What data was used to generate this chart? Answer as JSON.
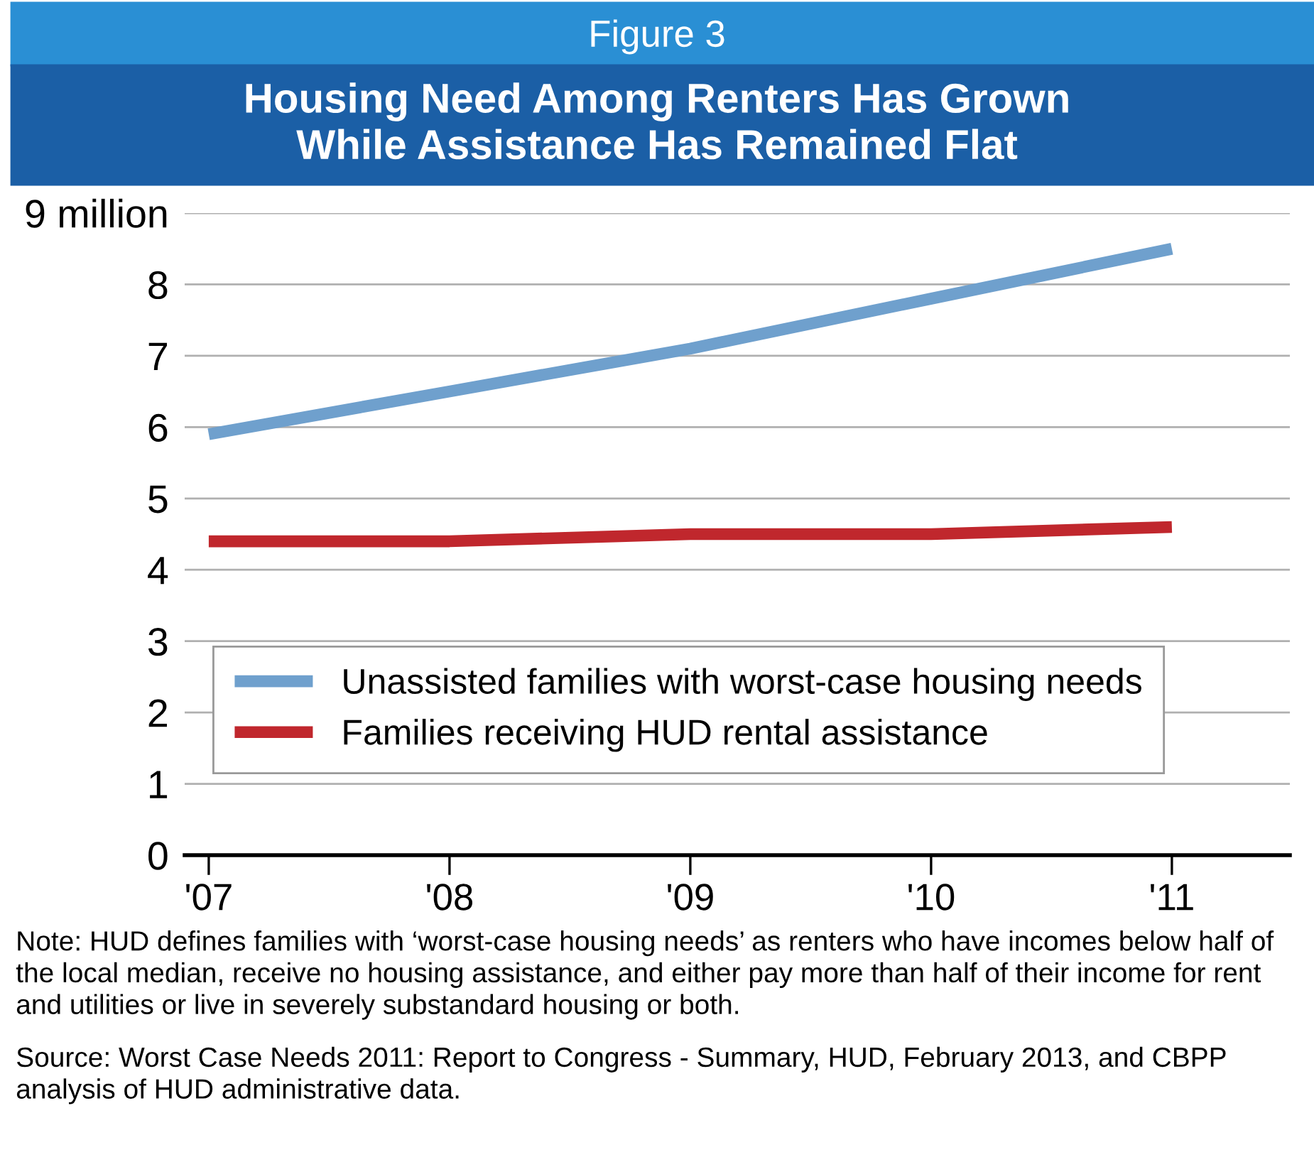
{
  "chart_data": {
    "type": "line",
    "title": "Housing Need Among Renters Has Grown\nWhile Assistance Has Remained Flat",
    "categories": [
      "'07",
      "'08",
      "'09",
      "'10",
      "'11"
    ],
    "series": [
      {
        "name": "Unassisted families with worst-case housing needs",
        "color": "#6fa0cd",
        "values": [
          5.9,
          6.5,
          7.1,
          7.8,
          8.5
        ]
      },
      {
        "name": "Families receiving HUD rental assistance",
        "color": "#c0272d",
        "values": [
          4.4,
          4.4,
          4.5,
          4.5,
          4.6
        ]
      }
    ],
    "ylim": [
      0,
      9
    ],
    "yticks": [
      0,
      1,
      2,
      3,
      4,
      5,
      6,
      7,
      8,
      {
        "value": 9,
        "label": "9 million"
      }
    ],
    "grid": "y",
    "legend": "bottom",
    "marker": "none",
    "line_style": "solid",
    "annotations": [
      "Figure 3",
      "Note: HUD defines families with ‘worst-case housing needs’ as renters who have incomes below half of the local median, receive no housing assistance, and either pay more than half of their income for rent and utilities or live in severely substandard housing or both.",
      "Source: Worst Case Needs 2011: Report to Congress - Summary, HUD, February 2013, and CBPP analysis of HUD administrative data."
    ]
  }
}
